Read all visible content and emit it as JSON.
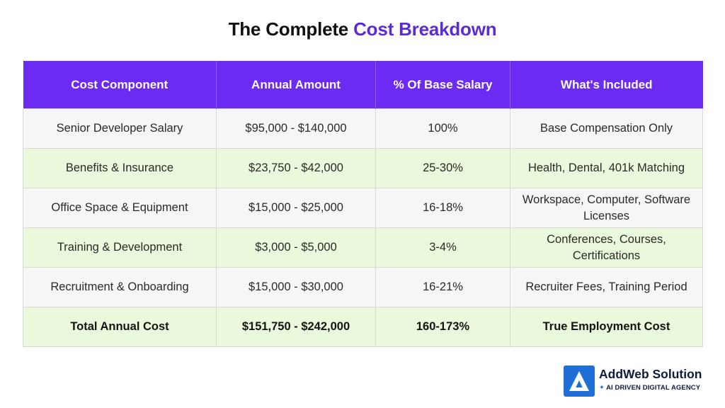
{
  "title": {
    "part1": "The Complete ",
    "part2": "Cost Breakdown"
  },
  "table": {
    "headers": [
      "Cost Component",
      "Annual Amount",
      "% Of Base Salary",
      "What's Included"
    ],
    "rows": [
      [
        "Senior Developer Salary",
        "$95,000 - $140,000",
        "100%",
        "Base Compensation Only"
      ],
      [
        "Benefits & Insurance",
        "$23,750 - $42,000",
        "25-30%",
        "Health, Dental, 401k Matching"
      ],
      [
        "Office Space & Equipment",
        "$15,000 - $25,000",
        "16-18%",
        "Workspace, Computer, Software Licenses"
      ],
      [
        "Training & Development",
        "$3,000 - $5,000",
        "3-4%",
        "Conferences, Courses, Certifications"
      ],
      [
        "Recruitment & Onboarding",
        "$15,000 - $30,000",
        "16-21%",
        "Recruiter Fees, Training Period"
      ],
      [
        "Total Annual Cost",
        "$151,750 - $242,000",
        "160-173%",
        "True Employment Cost"
      ]
    ]
  },
  "brand": {
    "name": "AddWeb Solution",
    "tagline": "AI DRIVEN DIGITAL AGENCY",
    "logo_icon": "addweb-logo-icon"
  },
  "colors": {
    "header_bg": "#6c2bf2",
    "title_accent": "#5b2bd6",
    "row_green": "#eaf8db",
    "row_grey": "#f6f6f6",
    "brand_blue": "#1f6fd6"
  }
}
